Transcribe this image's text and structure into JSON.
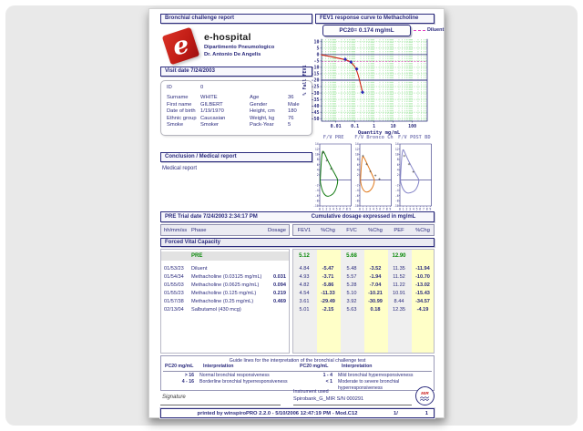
{
  "header": {
    "report_title": "Bronchial challenge report",
    "chart_title": "FEV1 response curve to Methacholine"
  },
  "clinic": {
    "logo_letter": "e",
    "name": "e-hospital",
    "dept": "Dipartimento Pneumologico",
    "doctor": "Dr. Antonio De Angelis"
  },
  "visit": {
    "label": "Visit date 7/24/2003"
  },
  "patient": {
    "id_label": "ID",
    "id_value": "0",
    "rows": [
      {
        "l1": "Surname",
        "v1": "WHITE",
        "l2": "Age",
        "v2": "36"
      },
      {
        "l1": "First name",
        "v1": "GILBERT",
        "l2": "Gender",
        "v2": "Male"
      },
      {
        "l1": "Date of birth",
        "v1": "1/19/1970",
        "l2": "Height, cm",
        "v2": "180"
      },
      {
        "l1": "Ethnic group",
        "v1": "Caucasian",
        "l2": "Weight, kg",
        "v2": "76"
      },
      {
        "l1": "Smoke",
        "v1": "Smoker",
        "l2": "Pack-Year",
        "v2": "5"
      }
    ]
  },
  "conclusion": {
    "title": "Conclusion / Medical report",
    "body": "Medical report"
  },
  "trial": {
    "bar_left": "PRE Trial date 7/24/2003   2:34:17 PM",
    "bar_right": "Cumulative dosage expressed in mg/mL",
    "columns": [
      "hh/mm/ss",
      "Phase",
      "Dosage",
      "FEV1",
      "%Chg",
      "FVC",
      "%Chg",
      "PEF",
      "%Chg"
    ],
    "section": "Forced Vital Capacity",
    "pre": {
      "label": "PRE",
      "fev1": "5.12",
      "fvc": "5.68",
      "pef": "12.90"
    },
    "rows": [
      {
        "time": "01/53/23",
        "phase": "Diluent",
        "dosage": "",
        "fev1": "4.84",
        "fev1_chg": "-5.47",
        "fvc": "5.48",
        "fvc_chg": "-3.52",
        "pef": "11.35",
        "pef_chg": "-11.94"
      },
      {
        "time": "01/54/34",
        "phase": "Methacholine (0.03125 mg/mL)",
        "dosage": "0.031",
        "fev1": "4.93",
        "fev1_chg": "-3.71",
        "fvc": "5.57",
        "fvc_chg": "-1.94",
        "pef": "11.52",
        "pef_chg": "-10.70"
      },
      {
        "time": "01/55/03",
        "phase": "Methacholine (0.0625 mg/mL)",
        "dosage": "0.094",
        "fev1": "4.82",
        "fev1_chg": "-5.86",
        "fvc": "5.28",
        "fvc_chg": "-7.04",
        "pef": "11.22",
        "pef_chg": "-13.02"
      },
      {
        "time": "01/55/23",
        "phase": "Methacholine (0.125 mg/mL)",
        "dosage": "0.219",
        "fev1": "4.54",
        "fev1_chg": "-11.33",
        "fvc": "5.10",
        "fvc_chg": "-10.21",
        "pef": "10.91",
        "pef_chg": "-15.43"
      },
      {
        "time": "01/57/38",
        "phase": "Methacholine (0.25 mg/mL)",
        "dosage": "0.469",
        "fev1": "3.61",
        "fev1_chg": "-29.49",
        "fvc": "3.92",
        "fvc_chg": "-30.99",
        "pef": "8.44",
        "pef_chg": "-34.57"
      },
      {
        "time": "02/13/04",
        "phase": "Salbutamol (430 mcg)",
        "dosage": "",
        "fev1": "5.01",
        "fev1_chg": "-2.15",
        "fvc": "5.63",
        "fvc_chg": "0.18",
        "pef": "12.35",
        "pef_chg": "-4.19"
      }
    ]
  },
  "guide": {
    "title": "Guide lines for the interpretation of the bronchial challenge test",
    "pc20_header": "PC20 mg/mL",
    "interp_header": "Interpretation",
    "left_rows": [
      {
        "range": "> 16",
        "text": "Normal bronchial responsiveness"
      },
      {
        "range": "4 - 16",
        "text": "Borderline bronchial hyperresponsiveness"
      }
    ],
    "right_rows": [
      {
        "range": "1 - 4",
        "text": "Mild bronchial hyperresponsiveness"
      },
      {
        "range": "< 1",
        "text": "Moderate to severe bronchial hyperresponsiveness"
      }
    ]
  },
  "footer": {
    "signature_label": "Signature",
    "instrument_label": "Instrument used",
    "instrument_value": "Spirobank_G_MIR S/N 000291",
    "mir": "MIR",
    "printed_line": "printed by winspiroPRO 2.2.0 - 5/10/2006 12:47:19 PM - Mod.C12",
    "page_current": "1/",
    "page_total": "1"
  },
  "colors": {
    "accent_navy": "#2b2b7d",
    "curve_red": "#cf2211",
    "marker_blue": "#2929b8",
    "diluent_magenta": "#e23ec0",
    "grid_green": "#57d057",
    "pre_green": "#0b8a0b",
    "chg_yellow": "#ffffc8",
    "col_gray": "#efefef",
    "loop_pre_green": "#127a12",
    "loop_challenge_orange": "#e07a1e",
    "loop_post_purple": "#8585c8"
  },
  "chart_data": [
    {
      "type": "line",
      "title": "FEV1 response curve to Methacholine",
      "pc20_label": "PC20= 0.174  mg/mL",
      "legend_label": "Diluent",
      "xlabel": "Quantity mg/mL",
      "ylabel": "% Fall FEV1",
      "x_scale": "log",
      "xlim": [
        0.0018,
        600
      ],
      "ylim": [
        -52,
        12
      ],
      "xticks": [
        0.01,
        0.1,
        1,
        10,
        100
      ],
      "xtick_labels": [
        "0.01",
        "0.1",
        "1",
        "10",
        "100"
      ],
      "yticks": [
        10,
        5,
        0,
        -5,
        -10,
        -15,
        -20,
        -25,
        -30,
        -35,
        -40,
        -45,
        -50
      ],
      "threshold_y": -20,
      "diluent_y": -5.47,
      "grid": true,
      "series": [
        {
          "name": "FEV1 % fall vs cumulative methacholine",
          "color": "#cf2211",
          "marker": "diamond",
          "marker_color": "#2929b8",
          "points": [
            [
              0.0018,
              -0.2
            ],
            [
              0.03125,
              -3.71
            ],
            [
              0.0625,
              -5.86
            ],
            [
              0.125,
              -11.33
            ],
            [
              0.25,
              -29.49
            ]
          ]
        }
      ]
    },
    {
      "type": "loop",
      "title": "F/V PRE",
      "color": "#127a12",
      "xlim": [
        0,
        9.3
      ],
      "ylim": [
        -10,
        14
      ],
      "xticks": [
        0,
        1,
        2,
        3,
        4,
        5,
        6,
        7,
        8,
        9
      ],
      "yticks": [
        14,
        12,
        10,
        8,
        6,
        4,
        2,
        -2,
        -4,
        -6,
        -8,
        -10
      ],
      "points": [
        [
          0.15,
          0
        ],
        [
          0.35,
          5.5
        ],
        [
          0.75,
          11.5
        ],
        [
          1.3,
          10.8
        ],
        [
          2.0,
          8.6
        ],
        [
          2.9,
          6.2
        ],
        [
          3.9,
          3.7
        ],
        [
          4.8,
          1.6
        ],
        [
          5.4,
          0
        ],
        [
          5.1,
          -2.4
        ],
        [
          4.3,
          -4.9
        ],
        [
          3.1,
          -6.2
        ],
        [
          1.9,
          -6.3
        ],
        [
          0.9,
          -4.7
        ],
        [
          0.25,
          -1.6
        ],
        [
          0.15,
          0
        ]
      ],
      "markers": [
        [
          1.0,
          10.6
        ],
        [
          2.1,
          7.6
        ],
        [
          3.3,
          4.4
        ]
      ]
    },
    {
      "type": "loop",
      "title": "F/V Bronco Ch",
      "color": "#e07a1e",
      "xlim": [
        0,
        9.3
      ],
      "ylim": [
        -10,
        14
      ],
      "xticks": [
        0,
        1,
        2,
        3,
        4,
        5,
        6,
        7,
        8,
        9
      ],
      "yticks": [
        14,
        12,
        10,
        8,
        6,
        4,
        2,
        -2,
        -4,
        -6,
        -8,
        -10
      ],
      "points": [
        [
          0.2,
          0
        ],
        [
          0.4,
          5.2
        ],
        [
          0.8,
          9.5
        ],
        [
          1.3,
          8.7
        ],
        [
          2.0,
          6.7
        ],
        [
          2.8,
          4.5
        ],
        [
          3.5,
          2.5
        ],
        [
          4.1,
          0.8
        ],
        [
          4.35,
          0
        ],
        [
          4.1,
          -1.9
        ],
        [
          3.4,
          -3.7
        ],
        [
          2.4,
          -4.7
        ],
        [
          1.4,
          -4.5
        ],
        [
          0.6,
          -2.9
        ],
        [
          0.25,
          -0.9
        ],
        [
          0.2,
          0
        ]
      ],
      "markers": [
        [
          0.9,
          9.4
        ],
        [
          2.0,
          6.2
        ],
        [
          3.1,
          3.4
        ],
        [
          4.6,
          1.8
        ],
        [
          5.8,
          0.4
        ]
      ]
    },
    {
      "type": "loop",
      "title": "F/V POST BD",
      "color": "#8585c8",
      "xlim": [
        0,
        9.3
      ],
      "ylim": [
        -10,
        14
      ],
      "xticks": [
        0,
        1,
        2,
        3,
        4,
        5,
        6,
        7,
        8,
        9
      ],
      "yticks": [
        14,
        12,
        10,
        8,
        6,
        4,
        2,
        -2,
        -4,
        -6,
        -8,
        -10
      ],
      "points": [
        [
          0.15,
          0
        ],
        [
          0.35,
          6
        ],
        [
          0.8,
          12.3
        ],
        [
          1.35,
          11.0
        ],
        [
          2.2,
          8.4
        ],
        [
          3.2,
          5.8
        ],
        [
          4.3,
          3.1
        ],
        [
          5.2,
          1.2
        ],
        [
          5.7,
          0
        ],
        [
          5.35,
          -2.1
        ],
        [
          4.5,
          -4.1
        ],
        [
          3.1,
          -5.0
        ],
        [
          1.9,
          -5.0
        ],
        [
          0.9,
          -3.6
        ],
        [
          0.25,
          -1.1
        ],
        [
          0.15,
          0
        ]
      ],
      "markers": [
        [
          1.3,
          9.4
        ],
        [
          2.7,
          6.2
        ],
        [
          4.0,
          3.2
        ]
      ]
    }
  ]
}
